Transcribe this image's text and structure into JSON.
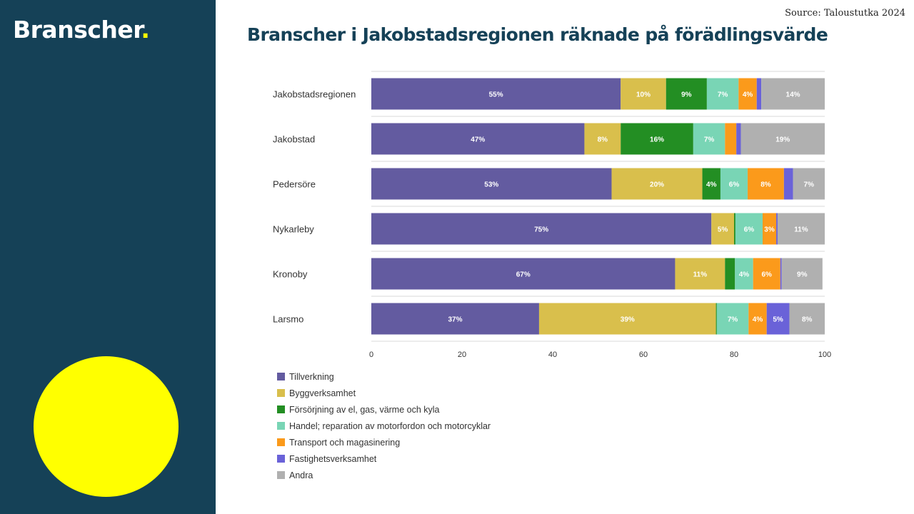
{
  "brand": {
    "name": "Branscher",
    "dot": "."
  },
  "source": "Source: Taloustutka 2024",
  "title": "Branscher i Jakobstadsregionen räknade på förädlingsvärde",
  "chart_data": {
    "type": "bar",
    "orientation": "horizontal",
    "stacked": true,
    "title": "Branscher i Jakobstadsregionen räknade på förädlingsvärde",
    "categories": [
      "Jakobstadsregionen",
      "Jakobstad",
      "Pedersöre",
      "Nykarleby",
      "Kronoby",
      "Larsmo"
    ],
    "series": [
      {
        "name": "Tillverkning",
        "color": "#635ba0",
        "values": [
          55,
          47,
          53,
          75,
          67,
          37
        ],
        "labels": [
          "55%",
          "47%",
          "53%",
          "75%",
          "67%",
          "37%"
        ]
      },
      {
        "name": "Byggverksamhet",
        "color": "#d9bf4c",
        "values": [
          10,
          8,
          20,
          5,
          11,
          39
        ],
        "labels": [
          "10%",
          "8%",
          "20%",
          "5%",
          "11%",
          "39%"
        ]
      },
      {
        "name": "Försörjning av el, gas, värme och kyla",
        "color": "#238e23",
        "values": [
          9,
          16,
          4,
          0.3,
          2.2,
          0.2
        ],
        "labels": [
          "9%",
          "16%",
          "4%",
          "",
          "",
          ""
        ]
      },
      {
        "name": "Handel; reparation av motorfordon och motorcyklar",
        "color": "#79d5b5",
        "values": [
          7,
          7,
          6,
          6,
          4,
          7
        ],
        "labels": [
          "7%",
          "7%",
          "6%",
          "6%",
          "4%",
          "7%"
        ]
      },
      {
        "name": "Transport och magasinering",
        "color": "#fb9a1b",
        "values": [
          4,
          2.5,
          8,
          3,
          6,
          4
        ],
        "labels": [
          "4%",
          "",
          "8%",
          "3%",
          "6%",
          "4%"
        ]
      },
      {
        "name": "Fastighetsverksamhet",
        "color": "#6a62d8",
        "values": [
          1,
          1,
          2,
          0.3,
          0.3,
          5
        ],
        "labels": [
          "",
          "",
          "",
          "",
          "",
          "5%"
        ]
      },
      {
        "name": "Andra",
        "color": "#b0b0b0",
        "values": [
          14,
          19,
          7,
          11,
          9,
          8
        ],
        "labels": [
          "14%",
          "19%",
          "7%",
          "11%",
          "9%",
          "8%"
        ]
      }
    ],
    "xlim": [
      0,
      100
    ],
    "xticks": [
      "0",
      "20",
      "40",
      "60",
      "80",
      "100"
    ],
    "xlabel": "",
    "ylabel": "",
    "grid": true,
    "legend": "bottom-left"
  }
}
